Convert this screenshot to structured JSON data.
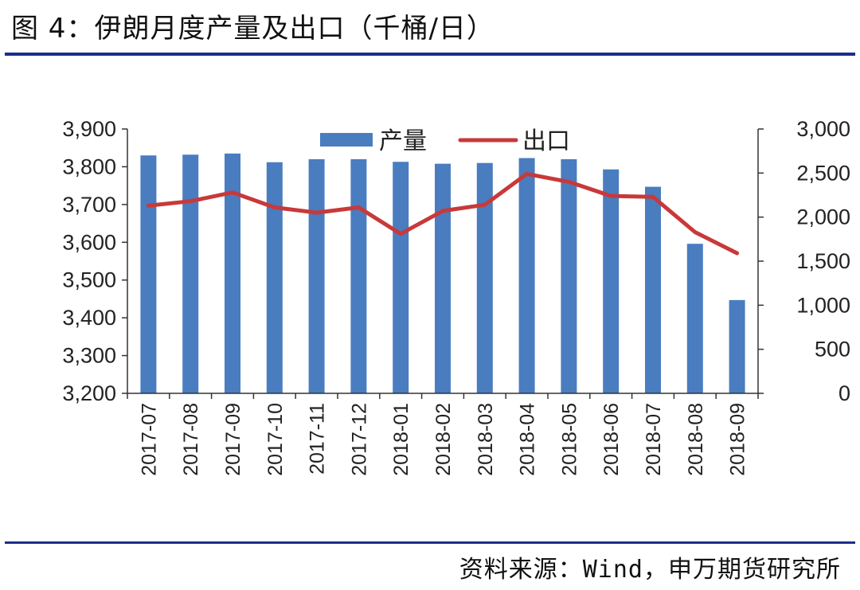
{
  "header": {
    "title": "图 4：伊朗月度产量及出口（千桶/日）"
  },
  "footer": {
    "source": "资料来源：Wind，申万期货研究所"
  },
  "colors": {
    "bar": "#4a7cc0",
    "line": "#c8393a",
    "rule": "#1a2f8a"
  },
  "chart_data": {
    "type": "bar",
    "categories": [
      "2017-07",
      "2017-08",
      "2017-09",
      "2017-10",
      "2017-11",
      "2017-12",
      "2018-01",
      "2018-02",
      "2018-03",
      "2018-04",
      "2018-05",
      "2018-06",
      "2018-07",
      "2018-08",
      "2018-09"
    ],
    "series": [
      {
        "name": "产量",
        "type": "bar",
        "axis": "left",
        "values": [
          3830,
          3832,
          3835,
          3812,
          3820,
          3820,
          3813,
          3808,
          3810,
          3823,
          3820,
          3793,
          3747,
          3596,
          3447
        ]
      },
      {
        "name": "出口",
        "type": "line",
        "axis": "right",
        "values": [
          2130,
          2180,
          2280,
          2110,
          2050,
          2110,
          1810,
          2070,
          2140,
          2490,
          2400,
          2240,
          2230,
          1830,
          1590
        ]
      }
    ],
    "y_left": {
      "min": 3200,
      "max": 3900,
      "ticks": [
        "3,200",
        "3,300",
        "3,400",
        "3,500",
        "3,600",
        "3,700",
        "3,800",
        "3,900"
      ]
    },
    "y_right": {
      "min": 0,
      "max": 3000,
      "ticks": [
        "0",
        "500",
        "1,000",
        "1,500",
        "2,000",
        "2,500",
        "3,000"
      ]
    },
    "legend": {
      "placement": "top-center",
      "items": [
        "产量",
        "出口"
      ]
    },
    "grid": false
  }
}
